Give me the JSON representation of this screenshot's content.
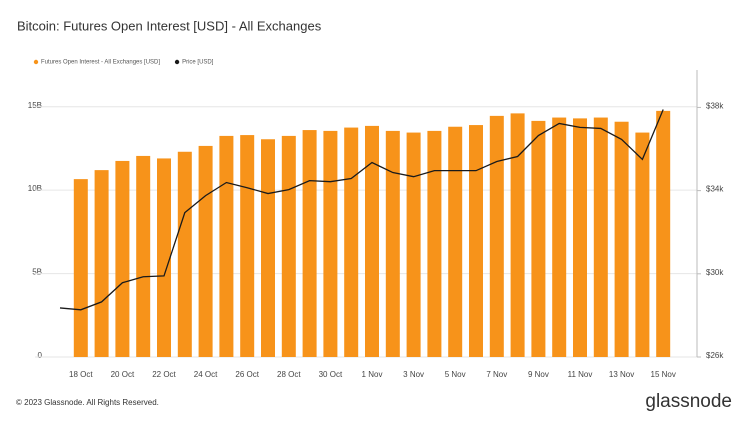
{
  "chart_data": {
    "type": "bar_line",
    "title": "Bitcoin: Futures Open Interest [USD] - All Exchanges",
    "categories": [
      null,
      "18 Oct",
      null,
      "20 Oct",
      null,
      "22 Oct",
      null,
      "24 Oct",
      null,
      "26 Oct",
      null,
      "28 Oct",
      null,
      "30 Oct",
      null,
      "1 Nov",
      null,
      "3 Nov",
      null,
      "5 Nov",
      null,
      "7 Nov",
      null,
      "9 Nov",
      null,
      "11 Nov",
      null,
      "13 Nov",
      null,
      "15 Nov"
    ],
    "series": [
      {
        "name": "Futures Open Interest - All Exchanges [USD]",
        "color": "#f7931a",
        "kind": "bar",
        "values": [
          null,
          10660000000,
          11200000000,
          11750000000,
          12050000000,
          11900000000,
          12300000000,
          12650000000,
          13250000000,
          13300000000,
          13050000000,
          13250000000,
          13600000000,
          13550000000,
          13750000000,
          13850000000,
          13550000000,
          13450000000,
          13550000000,
          13800000000,
          13900000000,
          14450000000,
          14600000000,
          14150000000,
          14350000000,
          14300000000,
          14350000000,
          14100000000,
          13450000000,
          14750000000
        ]
      },
      {
        "name": "Price [USD]",
        "color": "#1a1a1a",
        "kind": "line",
        "axis": "y2",
        "values": [
          28360,
          28270,
          28650,
          29570,
          29860,
          29900,
          32940,
          33760,
          34390,
          34140,
          33860,
          34050,
          34480,
          34430,
          34580,
          35350,
          34870,
          34670,
          34960,
          34960,
          34960,
          35400,
          35640,
          36650,
          37230,
          37040,
          36990,
          36460,
          35500,
          37900
        ]
      }
    ],
    "ylim": [
      0,
      17200000000
    ],
    "yticks": [
      0,
      {
        "value": 5000000000,
        "label": "5B"
      },
      {
        "value": 10000000000,
        "label": "10B"
      },
      {
        "value": 15000000000,
        "label": "15B"
      }
    ],
    "y2lim": [
      26000,
      39800
    ],
    "y2ticks": [
      {
        "value": 26000,
        "label": "$26k"
      },
      {
        "value": 30000,
        "label": "$30k"
      },
      {
        "value": 34000,
        "label": "$34k"
      },
      {
        "value": 38000,
        "label": "$38k"
      }
    ],
    "grid": true,
    "legend": "top-left"
  },
  "footer": {
    "copyright": "© 2023 Glassnode. All Rights Reserved.",
    "brand": "glassnode"
  }
}
